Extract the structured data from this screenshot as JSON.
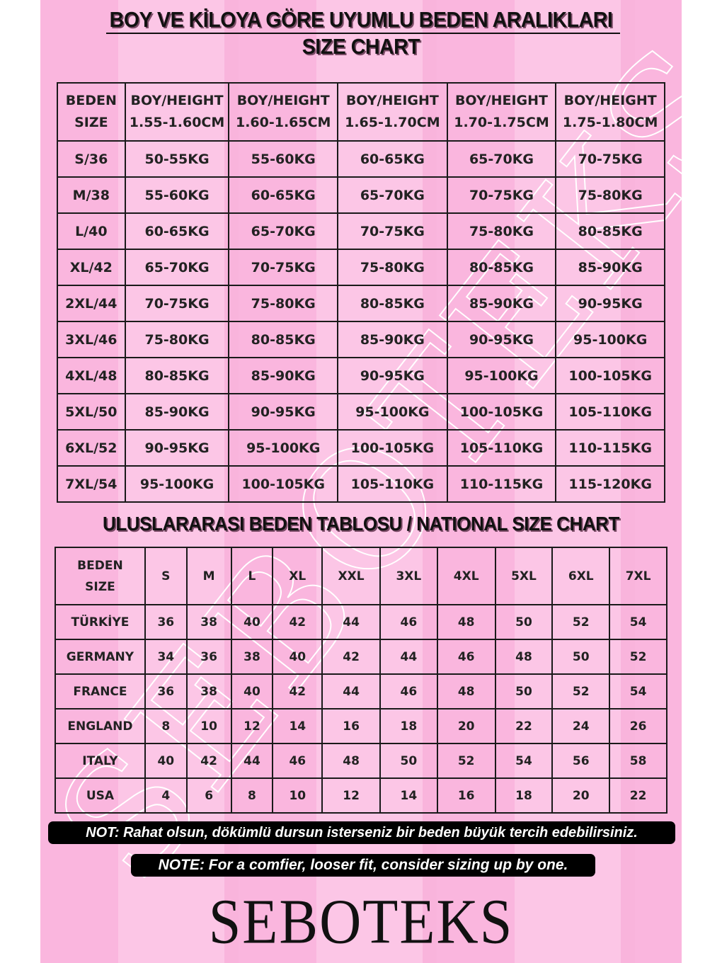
{
  "title": "BOY VE KİLOYA GÖRE UYUMLU BEDEN ARALIKLARI",
  "subtitle": "SIZE CHART",
  "watermark": "SEBOTEKS",
  "table1": {
    "header": [
      [
        "BEDEN",
        "SIZE"
      ],
      [
        "BOY/HEIGHT",
        "1.55-1.60CM"
      ],
      [
        "BOY/HEIGHT",
        "1.60-1.65CM"
      ],
      [
        "BOY/HEIGHT",
        "1.65-1.70CM"
      ],
      [
        "BOY/HEIGHT",
        "1.70-1.75CM"
      ],
      [
        "BOY/HEIGHT",
        "1.75-1.80CM"
      ]
    ],
    "rows": [
      [
        "S/36",
        "50-55KG",
        "55-60KG",
        "60-65KG",
        "65-70KG",
        "70-75KG"
      ],
      [
        "M/38",
        "55-60KG",
        "60-65KG",
        "65-70KG",
        "70-75KG",
        "75-80KG"
      ],
      [
        "L/40",
        "60-65KG",
        "65-70KG",
        "70-75KG",
        "75-80KG",
        "80-85KG"
      ],
      [
        "XL/42",
        "65-70KG",
        "70-75KG",
        "75-80KG",
        "80-85KG",
        "85-90KG"
      ],
      [
        "2XL/44",
        "70-75KG",
        "75-80KG",
        "80-85KG",
        "85-90KG",
        "90-95KG"
      ],
      [
        "3XL/46",
        "75-80KG",
        "80-85KG",
        "85-90KG",
        "90-95KG",
        "95-100KG"
      ],
      [
        "4XL/48",
        "80-85KG",
        "85-90KG",
        "90-95KG",
        "95-100KG",
        "100-105KG"
      ],
      [
        "5XL/50",
        "85-90KG",
        "90-95KG",
        "95-100KG",
        "100-105KG",
        "105-110KG"
      ],
      [
        "6XL/52",
        "90-95KG",
        "95-100KG",
        "100-105KG",
        "105-110KG",
        "110-115KG"
      ],
      [
        "7XL/54",
        "95-100KG",
        "100-105KG",
        "105-110KG",
        "110-115KG",
        "115-120KG"
      ]
    ]
  },
  "section2_title": "ULUSLARARASI BEDEN TABLOSU / NATIONAL SIZE CHART",
  "table2": {
    "header_label": [
      "BEDEN",
      "SIZE"
    ],
    "sizes": [
      "S",
      "M",
      "L",
      "XL",
      "XXL",
      "3XL",
      "4XL",
      "5XL",
      "6XL",
      "7XL"
    ],
    "rows": [
      [
        "TÜRKİYE",
        "36",
        "38",
        "40",
        "42",
        "44",
        "46",
        "48",
        "50",
        "52",
        "54"
      ],
      [
        "GERMANY",
        "34",
        "36",
        "38",
        "40",
        "42",
        "44",
        "46",
        "48",
        "50",
        "52"
      ],
      [
        "FRANCE",
        "36",
        "38",
        "40",
        "42",
        "44",
        "46",
        "48",
        "50",
        "52",
        "54"
      ],
      [
        "ENGLAND",
        "8",
        "10",
        "12",
        "14",
        "16",
        "18",
        "20",
        "22",
        "24",
        "26"
      ],
      [
        "ITALY",
        "40",
        "42",
        "44",
        "46",
        "48",
        "50",
        "52",
        "54",
        "56",
        "58"
      ],
      [
        "USA",
        "4",
        "6",
        "8",
        "10",
        "12",
        "14",
        "16",
        "18",
        "20",
        "22"
      ]
    ]
  },
  "note_tr": "NOT: Rahat olsun, dökümlü dursun isterseniz bir beden büyük tercih edebilirsiniz.",
  "note_en": "NOTE: For a comfier, looser fit, consider sizing up by one.",
  "brand": "SEBOTEKS",
  "colors": {
    "pink_light": "#fcc6e6",
    "pink": "#fab6de",
    "text": "#111111"
  }
}
